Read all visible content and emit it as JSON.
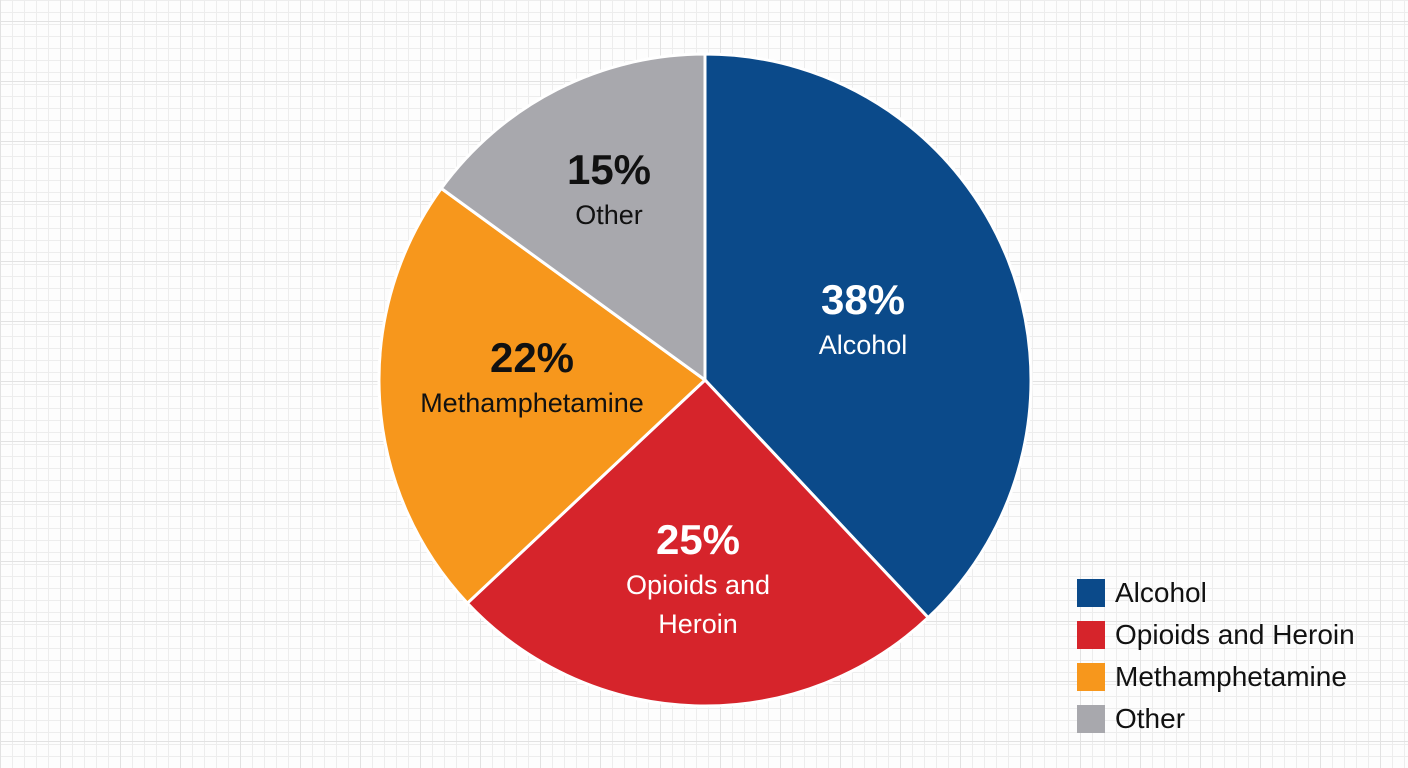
{
  "chart_data": {
    "type": "pie",
    "categories": [
      "Alcohol",
      "Opioids and Heroin",
      "Methamphetamine",
      "Other"
    ],
    "values": [
      38,
      25,
      22,
      15
    ],
    "labels": [
      "38%",
      "25%",
      "22%",
      "15%"
    ],
    "slice_labels": [
      [
        "Alcohol"
      ],
      [
        "Opioids and",
        "Heroin"
      ],
      [
        "Methamphetamine"
      ],
      [
        "Other"
      ]
    ],
    "colors": [
      "#0b4a8a",
      "#d6242b",
      "#f7971c",
      "#a8a8ad"
    ],
    "label_colors": [
      "#ffffff",
      "#ffffff",
      "#111111",
      "#111111"
    ],
    "start_angle": "top",
    "direction": "clockwise",
    "legend_position": "bottom-right",
    "grid": true
  },
  "legend": {
    "items": [
      {
        "label": "Alcohol",
        "color": "#0b4a8a"
      },
      {
        "label": "Opioids and Heroin",
        "color": "#d6242b"
      },
      {
        "label": "Methamphetamine",
        "color": "#f7971c"
      },
      {
        "label": "Other",
        "color": "#a8a8ad"
      }
    ]
  }
}
